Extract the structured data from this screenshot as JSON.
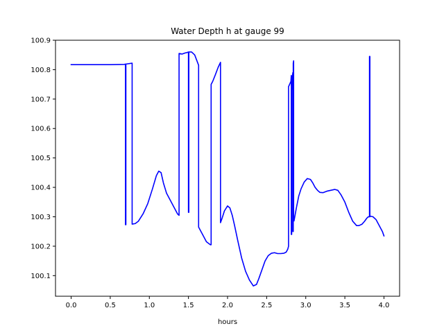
{
  "chart_data": {
    "type": "line",
    "title": "Water Depth h at gauge 99",
    "xlabel": "hours",
    "ylabel": "",
    "xlim": [
      -0.2,
      4.2
    ],
    "ylim": [
      100.03,
      100.9
    ],
    "x_ticks": [
      0.0,
      0.5,
      1.0,
      1.5,
      2.0,
      2.5,
      3.0,
      3.5,
      4.0
    ],
    "x_tick_labels": [
      "0.0",
      "0.5",
      "1.0",
      "1.5",
      "2.0",
      "2.5",
      "3.0",
      "3.5",
      "4.0"
    ],
    "y_ticks": [
      100.1,
      100.2,
      100.3,
      100.4,
      100.5,
      100.6,
      100.7,
      100.8,
      100.9
    ],
    "y_tick_labels": [
      "100.1",
      "100.2",
      "100.3",
      "100.4",
      "100.5",
      "100.6",
      "100.7",
      "100.8",
      "100.9"
    ],
    "grid": false,
    "legend": "none",
    "series": [
      {
        "color": "#0000ff",
        "x": [
          0.0,
          0.5,
          0.68,
          0.695,
          0.695,
          0.7,
          0.7,
          0.78,
          0.78,
          0.82,
          0.86,
          0.92,
          0.98,
          1.04,
          1.09,
          1.12,
          1.15,
          1.18,
          1.22,
          1.27,
          1.32,
          1.36,
          1.38,
          1.38,
          1.42,
          1.46,
          1.48,
          1.5,
          1.5,
          1.505,
          1.505,
          1.51,
          1.51,
          1.54,
          1.58,
          1.63,
          1.63,
          1.68,
          1.73,
          1.78,
          1.79,
          1.79,
          1.81,
          1.84,
          1.88,
          1.91,
          1.91,
          1.93,
          1.96,
          2.0,
          2.03,
          2.06,
          2.09,
          2.13,
          2.18,
          2.23,
          2.28,
          2.33,
          2.37,
          2.4,
          2.44,
          2.48,
          2.52,
          2.56,
          2.6,
          2.64,
          2.68,
          2.72,
          2.75,
          2.77,
          2.78,
          2.78,
          2.81,
          2.815,
          2.815,
          2.82,
          2.82,
          2.83,
          2.835,
          2.835,
          2.84,
          2.84,
          2.845,
          2.845,
          2.85,
          2.85,
          2.88,
          2.91,
          2.94,
          2.98,
          3.02,
          3.06,
          3.09,
          3.12,
          3.15,
          3.18,
          3.22,
          3.27,
          3.32,
          3.37,
          3.41,
          3.45,
          3.5,
          3.55,
          3.6,
          3.65,
          3.68,
          3.72,
          3.75,
          3.78,
          3.8,
          3.815,
          3.815,
          3.82,
          3.82,
          3.83,
          3.86,
          3.9,
          3.93,
          3.96,
          3.98,
          4.0
        ],
        "y": [
          100.817,
          100.817,
          100.818,
          100.819,
          100.273,
          100.273,
          100.819,
          100.822,
          100.275,
          100.277,
          100.285,
          100.31,
          100.345,
          100.395,
          100.44,
          100.455,
          100.45,
          100.415,
          100.38,
          100.355,
          100.33,
          100.31,
          100.305,
          100.855,
          100.853,
          100.857,
          100.858,
          100.86,
          100.315,
          100.315,
          100.86,
          100.86,
          100.86,
          100.86,
          100.85,
          100.815,
          100.265,
          100.24,
          100.215,
          100.205,
          100.205,
          100.75,
          100.76,
          100.78,
          100.808,
          100.825,
          100.28,
          100.295,
          100.32,
          100.337,
          100.33,
          100.305,
          100.27,
          100.22,
          100.16,
          100.115,
          100.085,
          100.065,
          100.07,
          100.09,
          100.12,
          100.15,
          100.168,
          100.176,
          100.178,
          100.175,
          100.175,
          100.176,
          100.18,
          100.19,
          100.2,
          100.742,
          100.76,
          100.78,
          100.24,
          100.24,
          100.73,
          100.78,
          100.79,
          100.25,
          100.25,
          100.822,
          100.83,
          100.29,
          100.29,
          100.286,
          100.33,
          100.37,
          100.395,
          100.418,
          100.43,
          100.427,
          100.415,
          100.4,
          100.39,
          100.383,
          100.382,
          100.387,
          100.39,
          100.393,
          100.39,
          100.375,
          100.35,
          100.315,
          100.285,
          100.27,
          100.27,
          100.275,
          100.284,
          100.295,
          100.3,
          100.3,
          100.845,
          100.845,
          100.3,
          100.302,
          100.3,
          100.29,
          100.275,
          100.26,
          100.25,
          100.235
        ]
      }
    ]
  }
}
